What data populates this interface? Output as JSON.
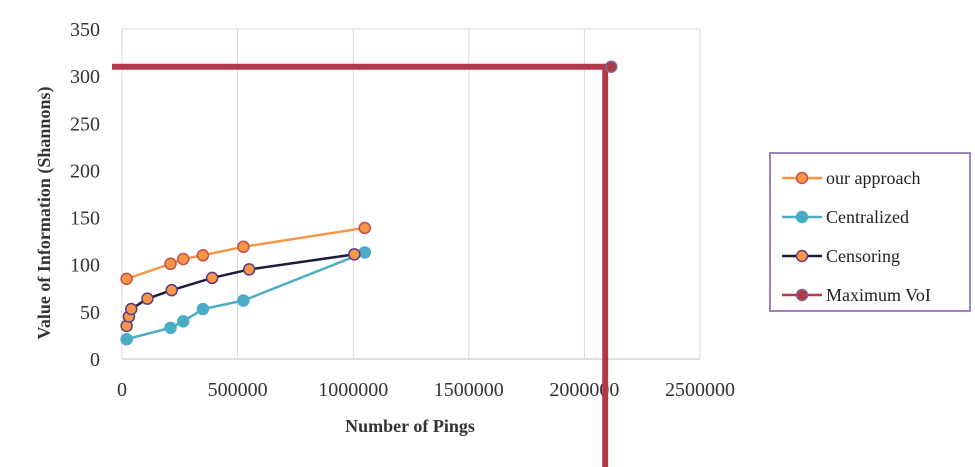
{
  "chart_data": {
    "type": "line",
    "title": "",
    "xlabel": "Number of Pings",
    "ylabel": "Value of Information (Shannons)",
    "xlim": [
      0,
      2500000
    ],
    "ylim": [
      0,
      350
    ],
    "x_ticks": [
      "0",
      "500000",
      "1000000",
      "1500000",
      "2000000",
      "2500000"
    ],
    "y_ticks": [
      "0",
      "50",
      "100",
      "150",
      "200",
      "250",
      "300",
      "350"
    ],
    "grid": "vertical",
    "legend_position": "right",
    "series": [
      {
        "name": "our approach",
        "color": "#f79646",
        "marker_color": "#f79646",
        "marker_edge": "#c0504d",
        "x": [
          20000,
          210000,
          265000,
          350000,
          525000,
          1050000
        ],
        "y": [
          85,
          101,
          106,
          110,
          119,
          139
        ]
      },
      {
        "name": "Centralized",
        "color": "#4bacc6",
        "marker_color": "#4bacc6",
        "marker_edge": "#4bacc6",
        "x": [
          20000,
          210000,
          265000,
          350000,
          525000,
          1050000
        ],
        "y": [
          21,
          33,
          40,
          53,
          62,
          113
        ]
      },
      {
        "name": "Censoring",
        "color": "#1f1a3a",
        "marker_color": "#f79646",
        "marker_edge": "#5b3c86",
        "x": [
          20000,
          30000,
          40000,
          110000,
          215000,
          390000,
          550000,
          1005000
        ],
        "y": [
          35,
          45,
          53,
          64,
          73,
          86,
          95,
          111
        ]
      },
      {
        "name": "Maximum VoI",
        "color": "#b23a48",
        "marker_color": "#b23a48",
        "marker_edge": "#8064a2",
        "x": [
          2090000
        ],
        "y": [
          310
        ],
        "drop_lines": true
      }
    ]
  }
}
